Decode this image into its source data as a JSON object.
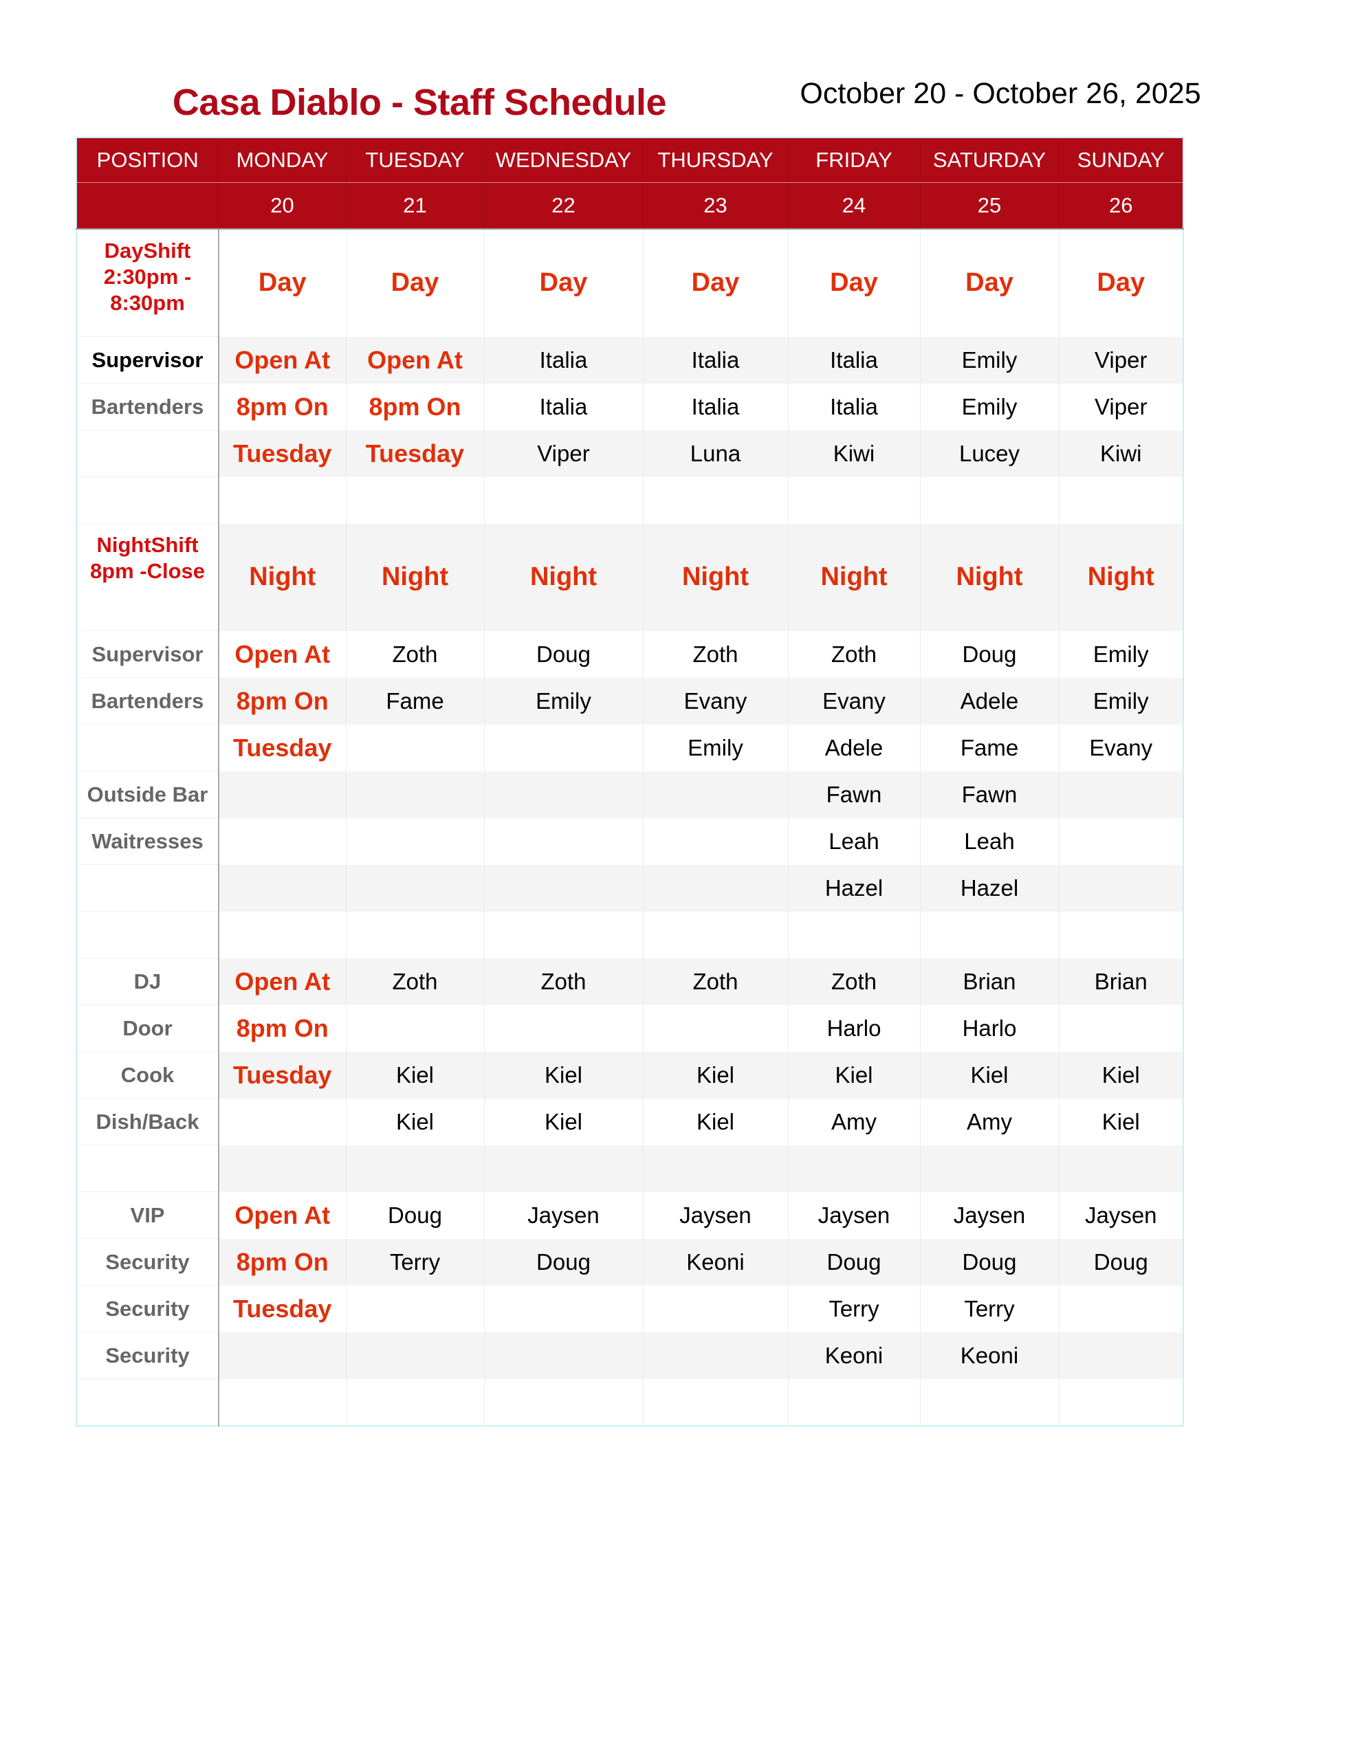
{
  "title": "Casa Diablo - Staff Schedule",
  "date_range": "October 20 - October 26, 2025",
  "colors": {
    "header_bg": "#b00a16",
    "title": "#b00a19",
    "accent_text": "#e0300a",
    "shift_label": "#d60e0e"
  },
  "columns": [
    "POSITION",
    "MONDAY",
    "TUESDAY",
    "WEDNESDAY",
    "THURSDAY",
    "FRIDAY",
    "SATURDAY",
    "SUNDAY"
  ],
  "dates": [
    "",
    "20",
    "21",
    "22",
    "23",
    "24",
    "25",
    "26"
  ],
  "rows": [
    {
      "type": "shift",
      "label": "DayShift 2:30pm - 8:30pm",
      "cells": [
        "Day",
        "Day",
        "Day",
        "Day",
        "Day",
        "Day",
        "Day"
      ]
    },
    {
      "label": "Supervisor",
      "black": true,
      "cells": [
        "Open At",
        "Open At",
        "Italia",
        "Italia",
        "Italia",
        "Emily",
        "Viper"
      ],
      "red": [
        0,
        1
      ]
    },
    {
      "label": "Bartenders",
      "cells": [
        "8pm On",
        "8pm On",
        "Italia",
        "Italia",
        "Italia",
        "Emily",
        "Viper"
      ],
      "red": [
        0,
        1
      ]
    },
    {
      "label": "",
      "cells": [
        "Tuesday",
        "Tuesday",
        "Viper",
        "Luna",
        "Kiwi",
        "Lucey",
        "Kiwi"
      ],
      "red": [
        0,
        1
      ]
    },
    {
      "label": "",
      "cells": [
        "",
        "",
        "",
        "",
        "",
        "",
        ""
      ]
    },
    {
      "type": "shift",
      "label": "NightShift 8pm -Close",
      "cells": [
        "Night",
        "Night",
        "Night",
        "Night",
        "Night",
        "Night",
        "Night"
      ]
    },
    {
      "label": "Supervisor",
      "cells": [
        "Open At",
        "Zoth",
        "Doug",
        "Zoth",
        "Zoth",
        "Doug",
        "Emily"
      ],
      "red": [
        0
      ]
    },
    {
      "label": "Bartenders",
      "cells": [
        "8pm On",
        "Fame",
        "Emily",
        "Evany",
        "Evany",
        "Adele",
        "Emily"
      ],
      "red": [
        0
      ]
    },
    {
      "label": "",
      "cells": [
        "Tuesday",
        "",
        "",
        "Emily",
        "Adele",
        "Fame",
        "Evany"
      ],
      "red": [
        0
      ]
    },
    {
      "label": "Outside Bar",
      "cells": [
        "",
        "",
        "",
        "",
        "Fawn",
        "Fawn",
        ""
      ]
    },
    {
      "label": "Waitresses",
      "cells": [
        "",
        "",
        "",
        "",
        "Leah",
        "Leah",
        ""
      ]
    },
    {
      "label": "",
      "cells": [
        "",
        "",
        "",
        "",
        "Hazel",
        "Hazel",
        ""
      ]
    },
    {
      "label": "",
      "cells": [
        "",
        "",
        "",
        "",
        "",
        "",
        ""
      ]
    },
    {
      "label": "DJ",
      "cells": [
        "Open At",
        "Zoth",
        "Zoth",
        "Zoth",
        "Zoth",
        "Brian",
        "Brian"
      ],
      "red": [
        0
      ]
    },
    {
      "label": "Door",
      "cells": [
        "8pm On",
        "",
        "",
        "",
        "Harlo",
        "Harlo",
        ""
      ],
      "red": [
        0
      ]
    },
    {
      "label": "Cook",
      "cells": [
        "Tuesday",
        "Kiel",
        "Kiel",
        "Kiel",
        "Kiel",
        "Kiel",
        "Kiel"
      ],
      "red": [
        0
      ]
    },
    {
      "label": "Dish/Back",
      "cells": [
        "",
        "Kiel",
        "Kiel",
        "Kiel",
        "Amy",
        "Amy",
        "Kiel"
      ]
    },
    {
      "label": "",
      "cells": [
        "",
        "",
        "",
        "",
        "",
        "",
        ""
      ]
    },
    {
      "label": "VIP",
      "cells": [
        "Open At",
        "Doug",
        "Jaysen",
        "Jaysen",
        "Jaysen",
        "Jaysen",
        "Jaysen"
      ],
      "red": [
        0
      ]
    },
    {
      "label": "Security",
      "cells": [
        "8pm On",
        "Terry",
        "Doug",
        "Keoni",
        "Doug",
        "Doug",
        "Doug"
      ],
      "red": [
        0
      ]
    },
    {
      "label": "Security",
      "cells": [
        "Tuesday",
        "",
        "",
        "",
        "Terry",
        "Terry",
        ""
      ],
      "red": [
        0
      ]
    },
    {
      "label": "Security",
      "cells": [
        "",
        "",
        "",
        "",
        "Keoni",
        "Keoni",
        ""
      ]
    },
    {
      "label": "",
      "cells": [
        "",
        "",
        "",
        "",
        "",
        "",
        ""
      ]
    }
  ]
}
